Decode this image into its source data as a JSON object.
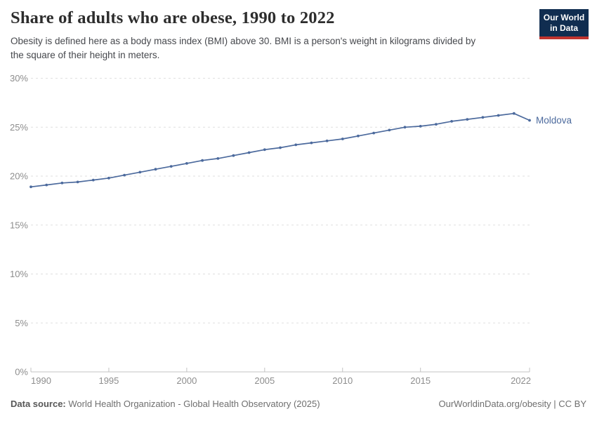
{
  "header": {
    "title": "Share of adults who are obese, 1990 to 2022",
    "subtitle_line1": "Obesity is defined here as a body mass index (BMI) above 30. BMI is a person's weight in kilograms divided by",
    "subtitle_line2": "the square of their height in meters.",
    "logo": {
      "line1": "Our World",
      "line2": "in Data",
      "bg_color": "#102d50",
      "accent_color": "#c0342f"
    }
  },
  "chart_data": {
    "type": "line",
    "title": "Share of adults who are obese, 1990 to 2022",
    "xlabel": "",
    "ylabel": "",
    "xlim": [
      1990,
      2022
    ],
    "ylim": [
      0,
      30
    ],
    "x_ticks": [
      1990,
      1995,
      2000,
      2005,
      2010,
      2015,
      2022
    ],
    "y_ticks": [
      0,
      5,
      10,
      15,
      20,
      25,
      30
    ],
    "y_tick_suffix": "%",
    "grid": "horizontal-dashed",
    "legend_position": "end-of-line-label",
    "grid_color": "#dfdfdf",
    "axis_color": "#c3c3c3",
    "tick_label_color": "#8d8d8d",
    "series": [
      {
        "name": "Moldova",
        "color": "#4c6a9d",
        "x": [
          1990,
          1991,
          1992,
          1993,
          1994,
          1995,
          1996,
          1997,
          1998,
          1999,
          2000,
          2001,
          2002,
          2003,
          2004,
          2005,
          2006,
          2007,
          2008,
          2009,
          2010,
          2011,
          2012,
          2013,
          2014,
          2015,
          2016,
          2017,
          2018,
          2019,
          2020,
          2021,
          2022
        ],
        "values": [
          18.9,
          19.1,
          19.3,
          19.4,
          19.6,
          19.8,
          20.1,
          20.4,
          20.7,
          21.0,
          21.3,
          21.6,
          21.8,
          22.1,
          22.4,
          22.7,
          22.9,
          23.2,
          23.4,
          23.6,
          23.8,
          24.1,
          24.4,
          24.7,
          25.0,
          25.1,
          25.3,
          25.6,
          25.8,
          26.0,
          26.2,
          26.4,
          25.7
        ]
      }
    ]
  },
  "footer": {
    "datasource_label": "Data source:",
    "datasource_text": "World Health Organization - Global Health Observatory (2025)",
    "credit": "OurWorldinData.org/obesity | CC BY"
  }
}
